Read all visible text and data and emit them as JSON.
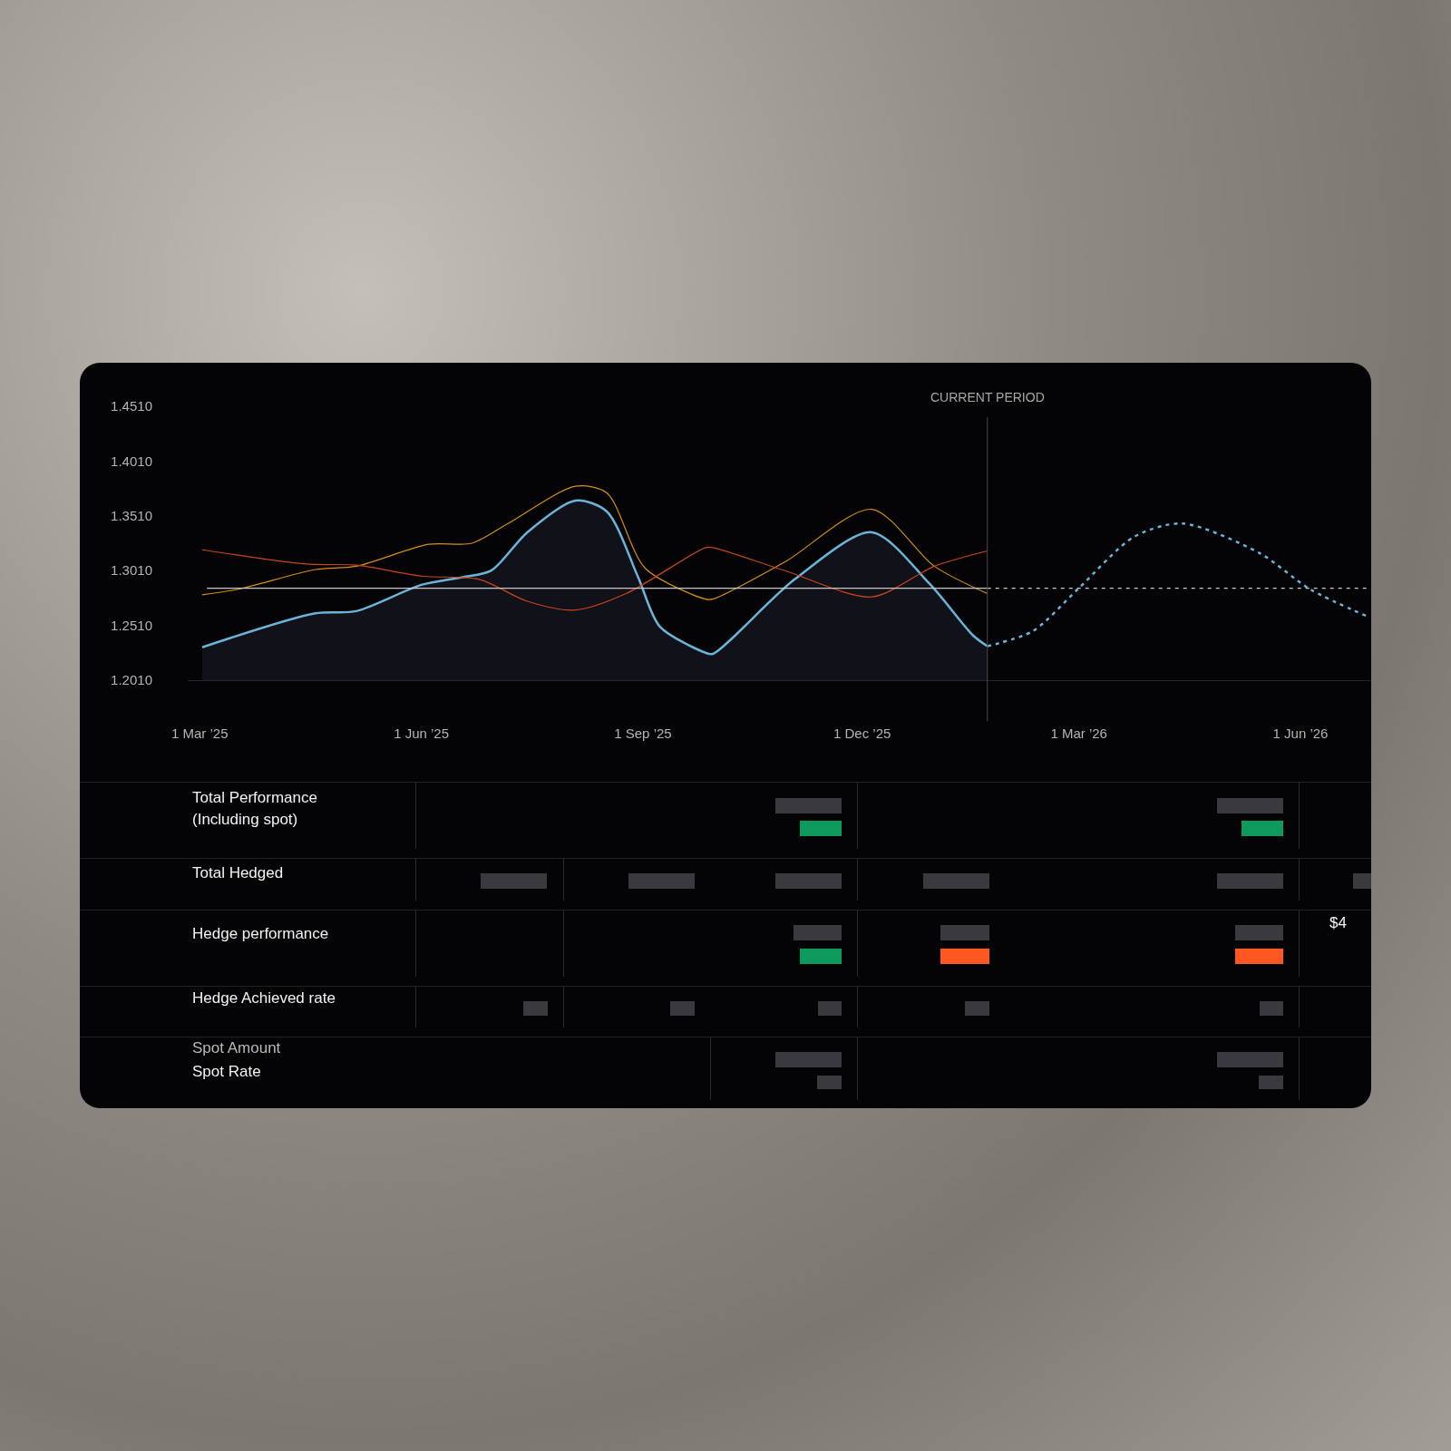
{
  "chart_data": {
    "type": "line",
    "xlim": [
      "2025-02-24",
      "2026-06-30"
    ],
    "xticks": [
      {
        "value": "2025-03-01",
        "label": "1 Mar ’25"
      },
      {
        "value": "2025-06-01",
        "label": "1 Jun ’25"
      },
      {
        "value": "2025-09-01",
        "label": "1 Sep ’25"
      },
      {
        "value": "2025-12-01",
        "label": "1 Dec ’25"
      },
      {
        "value": "2026-03-01",
        "label": "1 Mar ’26"
      },
      {
        "value": "2026-06-01",
        "label": "1 Jun ’26"
      }
    ],
    "ylim": [
      1.201,
      1.451
    ],
    "yticks": [
      {
        "value": 1.201,
        "label": "1.2010"
      },
      {
        "value": 1.251,
        "label": "1.2510"
      },
      {
        "value": 1.301,
        "label": "1.3010"
      },
      {
        "value": 1.351,
        "label": "1.3510"
      },
      {
        "value": 1.401,
        "label": "1.4010"
      },
      {
        "value": 1.451,
        "label": "1.4510"
      }
    ],
    "ref_lines": [
      {
        "axis": "x",
        "value": "2026-01-22",
        "label": "CURRENT PERIOD",
        "color": "#4a4a4a"
      }
    ],
    "series": [
      {
        "type": "area",
        "color": "#6ab4d8",
        "x": [
          "2025-03-02",
          "2025-04-18",
          "2025-05-05",
          "2025-06-01",
          "2025-06-18",
          "2025-06-30",
          "2025-07-15",
          "2025-08-04",
          "2025-08-17",
          "2025-08-30",
          "2025-09-08",
          "2025-09-27",
          "2025-09-30",
          "2025-11-03",
          "2025-12-05",
          "2025-12-29",
          "2026-01-16",
          "2026-01-22"
        ],
        "values": [
          1.231,
          1.262,
          1.264,
          1.288,
          1.295,
          1.301,
          1.336,
          1.365,
          1.355,
          1.295,
          1.25,
          1.226,
          1.225,
          1.293,
          1.336,
          1.289,
          1.242,
          1.232
        ]
      },
      {
        "type": "line",
        "color": "#6ab4d8",
        "line_style": "dashed",
        "x": [
          "2026-01-22",
          "2026-02-10",
          "2026-03-01",
          "2026-03-24",
          "2026-04-13",
          "2026-05-15",
          "2026-06-05",
          "2026-06-29"
        ],
        "values": [
          1.232,
          1.246,
          1.285,
          1.332,
          1.344,
          1.317,
          1.284,
          1.259
        ]
      },
      {
        "type": "line",
        "color": "#d4900f",
        "x": [
          "2025-03-02",
          "2025-03-17",
          "2025-04-18",
          "2025-05-05",
          "2025-06-04",
          "2025-06-22",
          "2025-07-07",
          "2025-08-04",
          "2025-08-17",
          "2025-09-02",
          "2025-09-27",
          "2025-09-30",
          "2025-10-30",
          "2025-12-05",
          "2025-12-31",
          "2026-01-22"
        ],
        "values": [
          1.279,
          1.284,
          1.302,
          1.305,
          1.325,
          1.326,
          1.344,
          1.378,
          1.372,
          1.303,
          1.275,
          1.275,
          1.309,
          1.357,
          1.305,
          1.28
        ]
      },
      {
        "type": "line",
        "color": "#c8461a",
        "x": [
          "2025-03-02",
          "2025-04-14",
          "2025-05-05",
          "2025-06-01",
          "2025-06-25",
          "2025-07-15",
          "2025-08-04",
          "2025-08-25",
          "2025-09-27",
          "2025-09-30",
          "2025-10-30",
          "2025-12-05",
          "2025-12-31",
          "2026-01-22"
        ],
        "values": [
          1.32,
          1.307,
          1.306,
          1.296,
          1.293,
          1.273,
          1.265,
          1.28,
          1.322,
          1.322,
          1.301,
          1.277,
          1.305,
          1.319
        ]
      },
      {
        "type": "line",
        "color": "#c8c8c8",
        "x": [
          "2025-03-04",
          "2026-01-22"
        ],
        "values": [
          1.285,
          1.285
        ]
      },
      {
        "type": "line",
        "color": "#c8c8c8",
        "line_style": "dashed",
        "x": [
          "2026-01-22",
          "2026-06-30"
        ],
        "values": [
          1.285,
          1.285
        ]
      }
    ],
    "annotations": [
      "Total Performance (Including spot)",
      "Total Hedged",
      "Hedge performance",
      "Hedge Achieved rate",
      "Spot Amount",
      "Spot Rate",
      "$4"
    ]
  }
}
